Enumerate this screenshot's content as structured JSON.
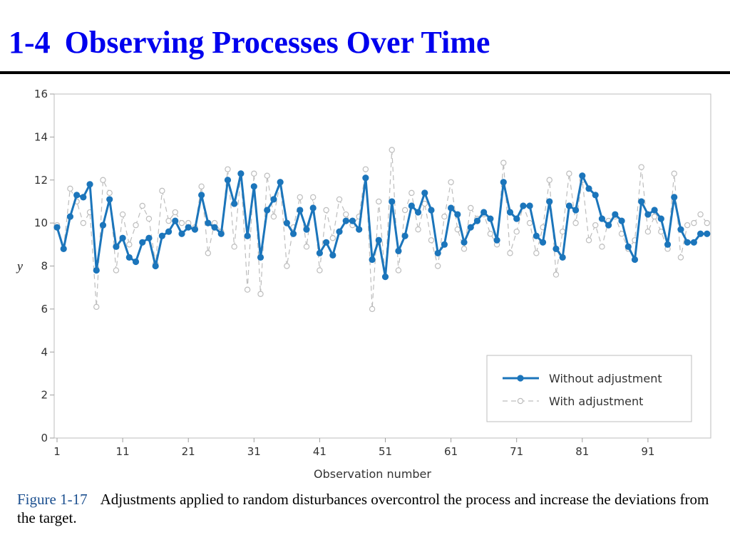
{
  "slide": {
    "number": "1-4",
    "title": "Observing Processes Over Time"
  },
  "caption": {
    "figure_label": "Figure 1-17",
    "text": "Adjustments applied to random disturbances overcontrol the process and increase the deviations from the target."
  },
  "colors": {
    "title": "#0000ee",
    "series_without": "#1b75bb",
    "series_with": "#bdbdbd",
    "caption_label": "#1b4f8f"
  },
  "chart_data": {
    "type": "line",
    "xlabel": "Observation number",
    "ylabel": "y",
    "xlim": [
      1,
      100
    ],
    "ylim": [
      0,
      16
    ],
    "x_ticks": [
      1,
      11,
      21,
      31,
      41,
      51,
      61,
      71,
      81,
      91
    ],
    "y_ticks": [
      0,
      2,
      4,
      6,
      8,
      10,
      12,
      14,
      16
    ],
    "grid": false,
    "legend_position": "bottom-right",
    "x": [
      1,
      2,
      3,
      4,
      5,
      6,
      7,
      8,
      9,
      10,
      11,
      12,
      13,
      14,
      15,
      16,
      17,
      18,
      19,
      20,
      21,
      22,
      23,
      24,
      25,
      26,
      27,
      28,
      29,
      30,
      31,
      32,
      33,
      34,
      35,
      36,
      37,
      38,
      39,
      40,
      41,
      42,
      43,
      44,
      45,
      46,
      47,
      48,
      49,
      50,
      51,
      52,
      53,
      54,
      55,
      56,
      57,
      58,
      59,
      60,
      61,
      62,
      63,
      64,
      65,
      66,
      67,
      68,
      69,
      70,
      71,
      72,
      73,
      74,
      75,
      76,
      77,
      78,
      79,
      80,
      81,
      82,
      83,
      84,
      85,
      86,
      87,
      88,
      89,
      90,
      91,
      92,
      93,
      94,
      95,
      96,
      97,
      98,
      99,
      100
    ],
    "series": [
      {
        "name": "Without adjustment",
        "style": "solid-filled-dots",
        "color": "#1b75bb",
        "values": [
          9.8,
          8.8,
          10.3,
          11.3,
          11.2,
          11.8,
          7.8,
          9.9,
          11.1,
          8.9,
          9.3,
          8.4,
          8.2,
          9.1,
          9.3,
          8.0,
          9.4,
          9.6,
          10.1,
          9.5,
          9.8,
          9.7,
          11.3,
          10.0,
          9.8,
          9.5,
          12.0,
          10.9,
          12.3,
          9.4,
          11.7,
          8.4,
          10.6,
          11.1,
          11.9,
          10.0,
          9.5,
          10.6,
          9.7,
          10.7,
          8.6,
          9.1,
          8.5,
          9.6,
          10.1,
          10.1,
          9.7,
          12.1,
          8.3,
          9.2,
          7.5,
          11.0,
          8.7,
          9.4,
          10.8,
          10.5,
          11.4,
          10.6,
          8.6,
          9.0,
          10.7,
          10.4,
          9.1,
          9.8,
          10.1,
          10.5,
          10.2,
          9.2,
          11.9,
          10.5,
          10.2,
          10.8,
          10.8,
          9.4,
          9.1,
          11.0,
          8.8,
          8.4,
          10.8,
          10.6,
          12.2,
          11.6,
          11.3,
          10.2,
          9.9,
          10.4,
          10.1,
          8.9,
          8.3,
          11.0,
          10.4,
          10.6,
          10.2,
          9.0,
          11.2,
          9.7,
          9.1,
          9.1,
          9.5,
          9.5
        ]
      },
      {
        "name": "With adjustment",
        "style": "dashed-open-circles",
        "color": "#bdbdbd",
        "values": [
          9.9,
          8.8,
          11.6,
          11.0,
          10.0,
          10.5,
          6.1,
          12.0,
          11.4,
          7.8,
          10.4,
          9.0,
          9.9,
          10.8,
          10.2,
          8.1,
          11.5,
          10.1,
          10.5,
          10.0,
          10.0,
          9.8,
          11.7,
          8.6,
          10.0,
          9.6,
          12.5,
          8.9,
          12.3,
          6.9,
          12.3,
          6.7,
          12.2,
          10.3,
          11.9,
          8.0,
          9.8,
          11.2,
          8.9,
          11.2,
          7.8,
          10.6,
          9.3,
          11.1,
          10.4,
          9.9,
          10.3,
          12.5,
          6.0,
          11.0,
          7.5,
          13.4,
          7.8,
          10.6,
          11.4,
          9.7,
          10.9,
          9.2,
          8.0,
          10.3,
          11.9,
          9.7,
          8.8,
          10.7,
          10.2,
          10.4,
          9.5,
          9.0,
          12.8,
          8.6,
          9.6,
          10.8,
          10.0,
          8.6,
          9.8,
          12.0,
          7.6,
          9.6,
          12.3,
          10.0,
          12.0,
          9.2,
          9.9,
          8.9,
          10.1,
          10.3,
          9.5,
          8.8,
          9.2,
          12.6,
          9.6,
          10.3,
          9.6,
          8.8,
          12.3,
          8.4,
          9.9,
          10.0,
          10.4,
          10.0
        ]
      }
    ]
  }
}
